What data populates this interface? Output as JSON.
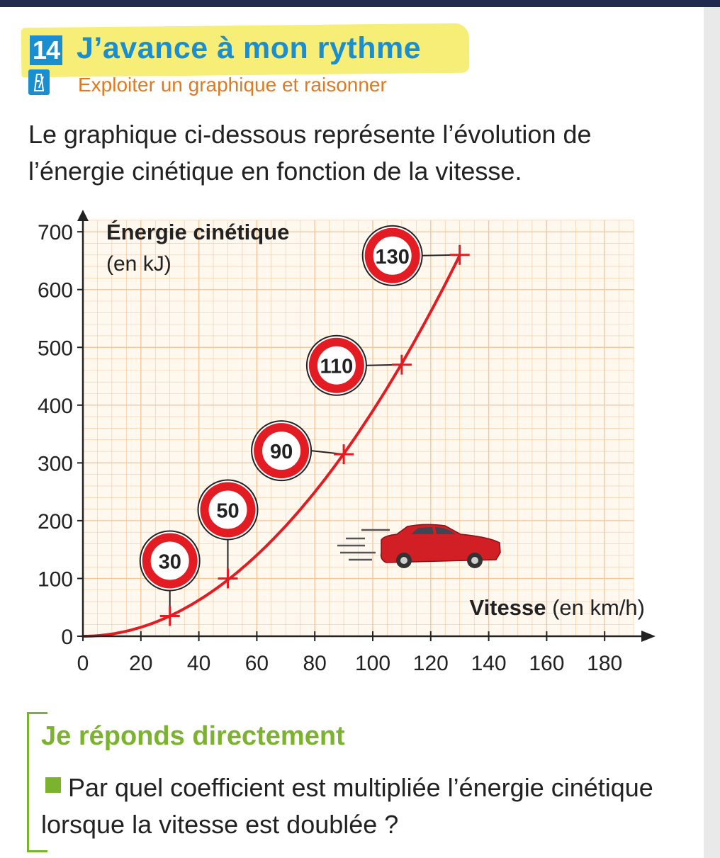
{
  "exercise": {
    "number": "14",
    "title": "J’avance à mon rythme",
    "subtitle": "Exploiter un graphique et raisonner",
    "intro": "Le graphique ci-dessous représente l’évolution de l’énergie cinétique en fonction de la vitesse."
  },
  "answer": {
    "title": "Je réponds directement",
    "question": "Par quel coefficient est multipliée l’énergie cinétique lorsque la vitesse est doublée ?"
  },
  "colors": {
    "accent": "#1a8ecf",
    "subtitle": "#e07a1f",
    "curve": "#e31b23",
    "grid": "#f5c79b",
    "answer": "#7bb32e",
    "highlight": "#f6ee76"
  },
  "icons": [
    "metronome-icon",
    "speed-limit-sign-icon",
    "car-icon"
  ],
  "chart_data": {
    "type": "line",
    "title": "",
    "ylabel": "Énergie cinétique",
    "ylabel_unit": "(en kJ)",
    "xlabel": "Vitesse",
    "xlabel_unit": "(en km/h)",
    "xlim": [
      0,
      190
    ],
    "ylim": [
      0,
      720
    ],
    "xticks": [
      0,
      20,
      40,
      60,
      80,
      100,
      120,
      140,
      160,
      180
    ],
    "yticks": [
      0,
      100,
      200,
      300,
      400,
      500,
      600,
      700
    ],
    "grid": true,
    "series": [
      {
        "marked_points": [
          {
            "x": 30,
            "y": 35,
            "label": "30"
          },
          {
            "x": 50,
            "y": 100,
            "label": "50"
          },
          {
            "x": 90,
            "y": 315,
            "label": "90"
          },
          {
            "x": 110,
            "y": 470,
            "label": "110"
          },
          {
            "x": 130,
            "y": 660,
            "label": "130"
          }
        ],
        "curve_equation": "E = 0.039 × v²"
      }
    ]
  }
}
